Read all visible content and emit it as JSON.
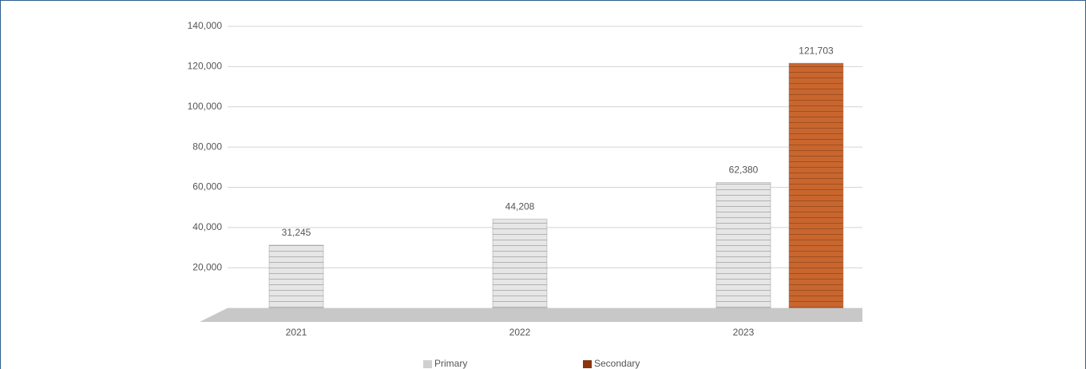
{
  "chart_data": {
    "type": "bar",
    "categories": [
      "2021",
      "2022",
      "2023"
    ],
    "series": [
      {
        "name": "Primary",
        "color": "#e6e6e6",
        "legend_color": "#d0d0d0",
        "values": [
          31245,
          44208,
          62380
        ],
        "value_labels": [
          "31,245",
          "44,208",
          "62,380"
        ]
      },
      {
        "name": "Secondary",
        "color": "#c9662e",
        "legend_color": "#8a3510",
        "values": [
          null,
          null,
          121703
        ],
        "value_labels": [
          null,
          null,
          "121,703"
        ]
      }
    ],
    "ylim": [
      0,
      140000
    ],
    "yticks": [
      {
        "value": 20000,
        "label": "20,000"
      },
      {
        "value": 40000,
        "label": "40,000"
      },
      {
        "value": 60000,
        "label": "60,000"
      },
      {
        "value": 80000,
        "label": "80,000"
      },
      {
        "value": 100000,
        "label": "100,000"
      },
      {
        "value": 120000,
        "label": "120,000"
      },
      {
        "value": 140000,
        "label": "140,000"
      }
    ],
    "grid": true
  }
}
